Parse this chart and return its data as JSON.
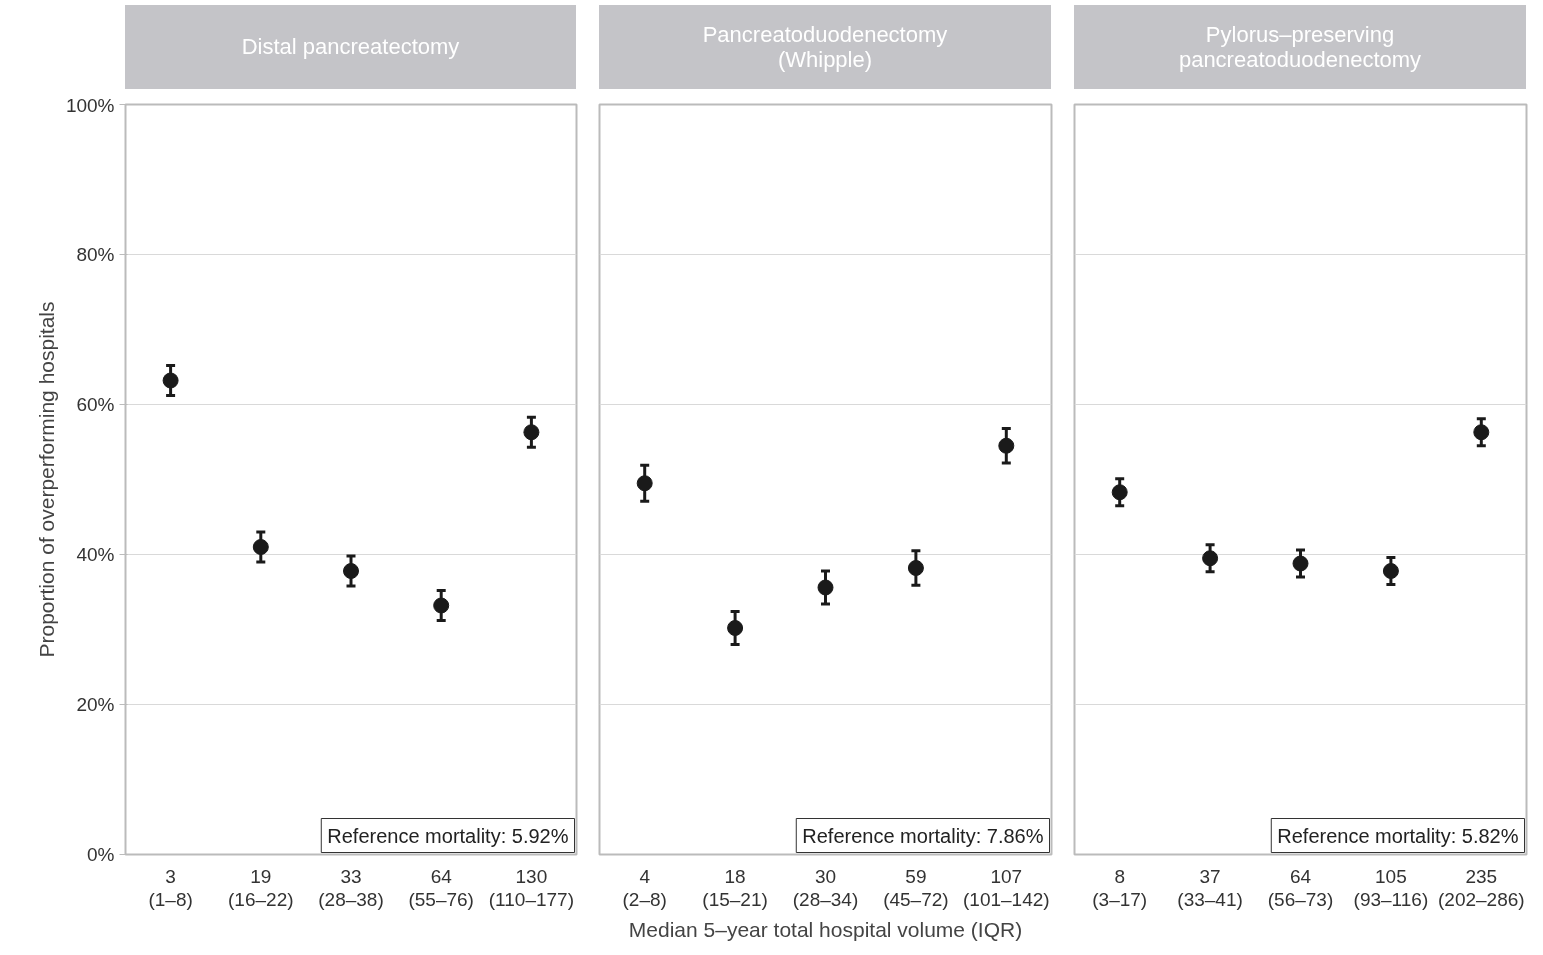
{
  "chart_data": [
    {
      "type": "scatter",
      "title": "Distal pancreatectomy",
      "ylabel": "Proportion of overperforming hospitals",
      "categories": [
        "3\n(1–8)",
        "19\n(16–22)",
        "33\n(28–38)",
        "64\n(55–76)",
        "130\n(110–177)"
      ],
      "values": [
        63.2,
        41.0,
        37.8,
        33.2,
        56.3
      ],
      "errors": [
        2,
        2,
        2,
        2,
        2
      ],
      "color": "#1a1a1a",
      "marker": "circle",
      "ylim": [
        0,
        100
      ],
      "yticks": [
        {
          "value": 0,
          "label": "0%"
        },
        {
          "value": 20,
          "label": "20%"
        },
        {
          "value": 40,
          "label": "40%"
        },
        {
          "value": 60,
          "label": "60%"
        },
        {
          "value": 80,
          "label": "80%"
        },
        {
          "value": 100,
          "label": "100%"
        }
      ],
      "grid": "y",
      "annotations": [
        "Reference mortality: 5.92%"
      ]
    },
    {
      "type": "scatter",
      "title": "Pancreatoduodenectomy\n(Whipple)",
      "xlabel": "Median 5–year total hospital volume (IQR)",
      "categories": [
        "4\n(2–8)",
        "18\n(15–21)",
        "30\n(28–34)",
        "59\n(45–72)",
        "107\n(101–142)"
      ],
      "values": [
        49.5,
        30.2,
        35.6,
        38.2,
        54.5
      ],
      "errors": [
        2.4,
        2.2,
        2.2,
        2.3,
        2.3
      ],
      "color": "#1a1a1a",
      "marker": "circle",
      "ylim": [
        0,
        100
      ],
      "yticks": [
        {
          "value": 0,
          "label": null
        },
        {
          "value": 20,
          "label": null
        },
        {
          "value": 40,
          "label": null
        },
        {
          "value": 60,
          "label": null
        },
        {
          "value": 80,
          "label": null
        },
        {
          "value": 100,
          "label": null
        }
      ],
      "tick_labels": "x",
      "grid": "y",
      "annotations": [
        "Reference mortality: 7.86%"
      ]
    },
    {
      "type": "scatter",
      "title": "Pylorus–preserving\npancreatoduodenectomy",
      "categories": [
        "8\n(3–17)",
        "37\n(33–41)",
        "64\n(56–73)",
        "105\n(93–116)",
        "235\n(202–286)"
      ],
      "values": [
        48.3,
        39.5,
        38.8,
        37.8,
        56.3
      ],
      "errors": [
        1.8,
        1.8,
        1.8,
        1.8,
        1.8
      ],
      "color": "#1a1a1a",
      "marker": "circle",
      "ylim": [
        0,
        100
      ],
      "yticks": [
        {
          "value": 0,
          "label": null
        },
        {
          "value": 20,
          "label": null
        },
        {
          "value": 40,
          "label": null
        },
        {
          "value": 60,
          "label": null
        },
        {
          "value": 80,
          "label": null
        },
        {
          "value": 100,
          "label": null
        }
      ],
      "tick_labels": "x",
      "grid": "y",
      "annotations": [
        "Reference mortality: 5.82%"
      ]
    }
  ]
}
